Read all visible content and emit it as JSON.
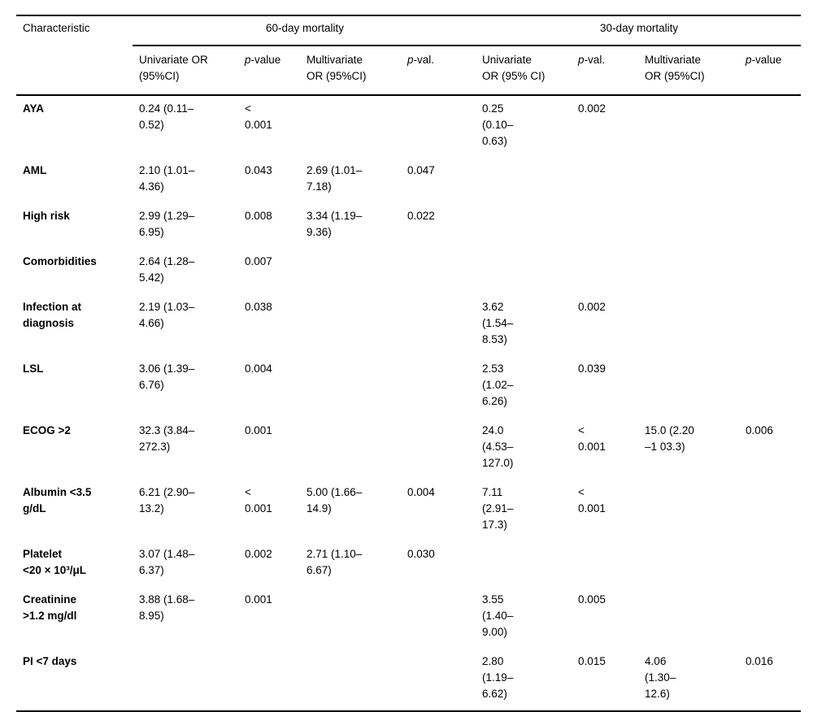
{
  "table": {
    "characteristic_header": "Characteristic",
    "groups": [
      {
        "label": "60-day mortality"
      },
      {
        "label": "30-day mortality"
      }
    ],
    "columns": [
      {
        "pre": "",
        "label": "Univariate OR\n(95%CI)"
      },
      {
        "pre": "p",
        "label": "-value"
      },
      {
        "pre": "",
        "label": "Multivariate\nOR (95%CI)"
      },
      {
        "pre": "p",
        "label": "-val."
      },
      {
        "pre": "",
        "label": "Univariate\nOR (95% CI)"
      },
      {
        "pre": "p",
        "label": "-val."
      },
      {
        "pre": "",
        "label": "Multivariate\nOR (95%CI)"
      },
      {
        "pre": "p",
        "label": "-value"
      }
    ],
    "rows": [
      {
        "label": "AYA",
        "cells": [
          "0.24 (0.11–\n0.52)",
          "<\n0.001",
          "",
          "",
          "0.25\n(0.10–\n0.63)",
          "0.002",
          "",
          ""
        ]
      },
      {
        "label": "AML",
        "cells": [
          "2.10 (1.01–\n4.36)",
          "0.043",
          "2.69 (1.01–\n7.18)",
          "0.047",
          "",
          "",
          "",
          ""
        ]
      },
      {
        "label": "High risk",
        "cells": [
          "2.99 (1.29–\n6.95)",
          "0.008",
          "3.34 (1.19–\n9.36)",
          "0.022",
          "",
          "",
          "",
          ""
        ]
      },
      {
        "label": "Comorbidities",
        "cells": [
          "2.64 (1.28–\n5.42)",
          "0.007",
          "",
          "",
          "",
          "",
          "",
          ""
        ]
      },
      {
        "label": "Infection at\ndiagnosis",
        "cells": [
          "2.19 (1.03–\n4.66)",
          "0.038",
          "",
          "",
          "3.62\n(1.54–\n8.53)",
          "0.002",
          "",
          ""
        ]
      },
      {
        "label": "LSL",
        "cells": [
          "3.06 (1.39–\n6.76)",
          "0.004",
          "",
          "",
          "2.53\n(1.02–\n6.26)",
          "0.039",
          "",
          ""
        ]
      },
      {
        "label": "ECOG >2",
        "cells": [
          "32.3 (3.84–\n272.3)",
          "0.001",
          "",
          "",
          "24.0\n(4.53–\n127.0)",
          "<\n0.001",
          "15.0 (2.20\n–1 03.3)",
          "0.006"
        ]
      },
      {
        "label": "Albumin <3.5\ng/dL",
        "cells": [
          "6.21 (2.90–\n13.2)",
          "<\n0.001",
          "5.00 (1.66–\n14.9)",
          "0.004",
          "7.11\n(2.91–\n17.3)",
          "<\n0.001",
          "",
          ""
        ]
      },
      {
        "label": "Platelet\n<20 × 10³/μL",
        "cells": [
          "3.07 (1.48–\n6.37)",
          "0.002",
          "2.71 (1.10–\n6.67)",
          "0.030",
          "",
          "",
          "",
          ""
        ]
      },
      {
        "label": "Creatinine\n>1.2 mg/dl",
        "cells": [
          "3.88 (1.68–\n8.95)",
          "0.001",
          "",
          "",
          "3.55\n(1.40–\n9.00)",
          "0.005",
          "",
          ""
        ]
      },
      {
        "label": "PI <7 days",
        "cells": [
          "",
          "",
          "",
          "",
          "2.80\n(1.19–\n6.62)",
          "0.015",
          "4.06\n(1.30–\n12.6)",
          "0.016"
        ]
      }
    ]
  }
}
